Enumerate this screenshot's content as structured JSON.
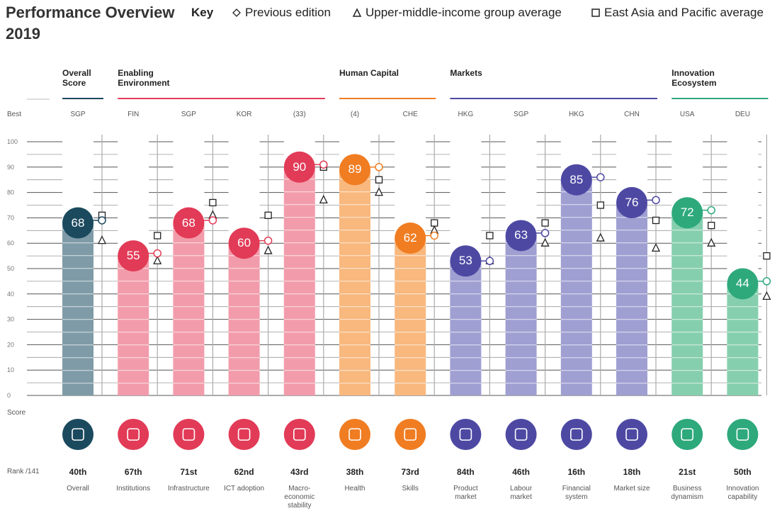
{
  "chart_data": {
    "type": "bar",
    "title": "Performance Overview",
    "subtitle": "2019",
    "key_title": "Key",
    "legend": {
      "previous": "Previous edition",
      "upper_middle": "Upper-middle-income group average",
      "east_asia": "East Asia and Pacific average"
    },
    "best_label": "Best",
    "score_label": "Score",
    "rank_label": "Rank /141",
    "ylim": [
      0,
      100
    ],
    "yticks": [
      0,
      10,
      20,
      30,
      40,
      50,
      60,
      70,
      80,
      90,
      100
    ],
    "groups": [
      {
        "name": "Overall Score",
        "color": "#1b4a5e",
        "bar_color": "#7f9ba7",
        "columns": [
          {
            "best": "SGP",
            "score": 68,
            "previous": 69,
            "upper_middle": 61,
            "east_asia": 71,
            "rank": "40th",
            "name": "Overall"
          }
        ]
      },
      {
        "name": "Enabling Environment",
        "color": "#e23b57",
        "bar_color": "#f29cab",
        "columns": [
          {
            "best": "FIN",
            "score": 55,
            "previous": 56,
            "upper_middle": 53,
            "east_asia": 63,
            "rank": "67th",
            "name": "Institutions"
          },
          {
            "best": "SGP",
            "score": 68,
            "previous": 69,
            "upper_middle": 71,
            "east_asia": 76,
            "rank": "71st",
            "name": "Infrastructure"
          },
          {
            "best": "KOR",
            "score": 60,
            "previous": 61,
            "upper_middle": 57,
            "east_asia": 71,
            "rank": "62nd",
            "name": "ICT adoption"
          },
          {
            "best": "(33)",
            "score": 90,
            "previous": 91,
            "upper_middle": 77,
            "east_asia": 90,
            "rank": "43rd",
            "name": "Macro-economic stability"
          }
        ]
      },
      {
        "name": "Human Capital",
        "color": "#f07d22",
        "bar_color": "#f8b87e",
        "columns": [
          {
            "best": "(4)",
            "score": 89,
            "previous": 90,
            "upper_middle": 80,
            "east_asia": 85,
            "rank": "38th",
            "name": "Health"
          },
          {
            "best": "CHE",
            "score": 62,
            "previous": 63,
            "upper_middle": 65,
            "east_asia": 68,
            "rank": "73rd",
            "name": "Skills"
          }
        ]
      },
      {
        "name": "Markets",
        "color": "#4d49a3",
        "bar_color": "#a09fd2",
        "columns": [
          {
            "best": "HKG",
            "score": 53,
            "previous": 53,
            "upper_middle": 53,
            "east_asia": 63,
            "rank": "84th",
            "name": "Product market"
          },
          {
            "best": "SGP",
            "score": 63,
            "previous": 64,
            "upper_middle": 60,
            "east_asia": 68,
            "rank": "46th",
            "name": "Labour market"
          },
          {
            "best": "HKG",
            "score": 85,
            "previous": 86,
            "upper_middle": 62,
            "east_asia": 75,
            "rank": "16th",
            "name": "Financial system"
          },
          {
            "best": "CHN",
            "score": 76,
            "previous": 77,
            "upper_middle": 58,
            "east_asia": 69,
            "rank": "18th",
            "name": "Market size"
          }
        ]
      },
      {
        "name": "Innovation Ecosystem",
        "color": "#2ea97c",
        "bar_color": "#86cfae",
        "columns": [
          {
            "best": "USA",
            "score": 72,
            "previous": 73,
            "upper_middle": 60,
            "east_asia": 67,
            "rank": "21st",
            "name": "Business dynamism"
          },
          {
            "best": "DEU",
            "score": 44,
            "previous": 45,
            "upper_middle": 39,
            "east_asia": 55,
            "rank": "50th",
            "name": "Innovation capability"
          }
        ]
      }
    ]
  }
}
